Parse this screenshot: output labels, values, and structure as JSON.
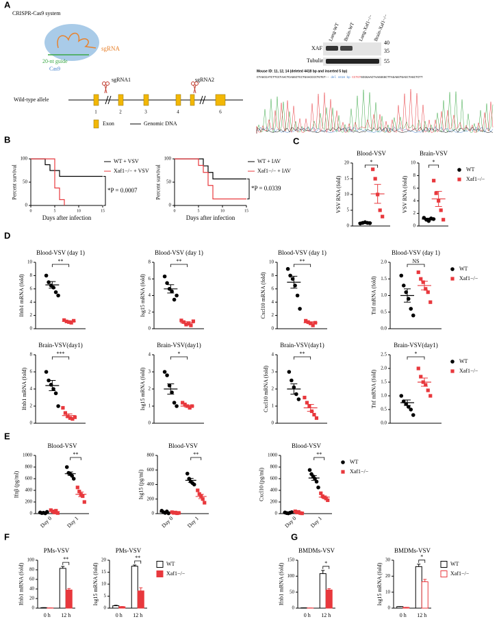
{
  "panel_labels": [
    "A",
    "B",
    "C",
    "D",
    "E",
    "F",
    "G"
  ],
  "diagram": {
    "title": "CRISPR-Cas9 system",
    "sgrna": "sgRNA",
    "guide": "20-nt guide",
    "cas9": "Cas9",
    "sgrna1": "sgRNA1",
    "sgrna2": "sgRNA2",
    "allele": "Wild-type allele",
    "exons": [
      "1",
      "2",
      "3",
      "4",
      "6"
    ],
    "legend_exon": "Exon",
    "legend_dna": "Genomic DNA"
  },
  "blot": {
    "lanes": [
      "Lung-WT",
      "Brain-WT",
      "Lung-Xaf1−/−",
      "Brain-Xaf1−/−"
    ],
    "rows": [
      "XAF1",
      "Tubulin"
    ],
    "markers": [
      "40",
      "35",
      "55"
    ]
  },
  "sequence": {
    "header": "Mouse ID: 11, 12, 14 (deleted 4418 bp and inserted 5 bp)",
    "left": "CTAGCCATCTTCCTAACTCAGGCTCCTGAACCCCTGTGT--",
    "deletion": "del 4418 bp",
    "insert": "CCTGT",
    "right": "GCGGAACTAAGGGGCTTAGAGGTGACCTAGCTCTT"
  },
  "chart_data": [
    {
      "type": "survival",
      "ylabel": "Percent survival",
      "xlabel": "Days after infection",
      "xlim": [
        0,
        15
      ],
      "xticks": [
        0,
        5,
        10,
        15
      ],
      "ylim": [
        0,
        100
      ],
      "yticks": [
        0,
        50,
        100
      ],
      "annotation": "*P = 0.0007",
      "legend": "upper right",
      "series": [
        {
          "name": "WT + VSV",
          "color": "#000000",
          "x": [
            0,
            3,
            4,
            6,
            15
          ],
          "values": [
            100,
            87.5,
            75,
            62.5,
            62.5
          ]
        },
        {
          "name": "Xaf1−/− + VSV",
          "color": "#e8383d",
          "x": [
            0,
            5,
            6,
            7
          ],
          "values": [
            100,
            37.5,
            12.5,
            0
          ]
        }
      ]
    },
    {
      "type": "survival",
      "ylabel": "Percent survival",
      "xlabel": "Days after infection",
      "xlim": [
        0,
        15
      ],
      "xticks": [
        0,
        5,
        10,
        15
      ],
      "ylim": [
        0,
        100
      ],
      "yticks": [
        0,
        50,
        100
      ],
      "annotation": "*P = 0.0339",
      "legend": "upper right",
      "series": [
        {
          "name": "WT + IAV",
          "color": "#000000",
          "x": [
            0,
            6,
            7,
            8,
            15
          ],
          "values": [
            100,
            85,
            71,
            57,
            57
          ]
        },
        {
          "name": "Xaf1−/− + IAV",
          "color": "#e8383d",
          "x": [
            0,
            5,
            6,
            7,
            8,
            15
          ],
          "values": [
            100,
            86,
            71,
            43,
            14,
            14
          ]
        }
      ]
    },
    {
      "type": "dot",
      "title": "Blood-VSV",
      "ylabel": "VSV RNA (fold)",
      "ylim": [
        0,
        20
      ],
      "yticks": [
        0,
        5,
        10,
        15,
        20
      ],
      "annotation": "*",
      "series": [
        {
          "color": "#000000",
          "marker": "circle",
          "values": [
            0.8,
            1,
            1.2,
            1,
            0.9
          ],
          "mean": 1,
          "error": 0.1
        },
        {
          "color": "#e8383d",
          "marker": "square",
          "values": [
            18,
            15,
            10,
            5,
            3
          ],
          "mean": 10.2,
          "error": 3
        }
      ]
    },
    {
      "type": "dot",
      "title": "Brain-VSV",
      "ylabel": "VSV RNA (fold)",
      "ylim": [
        0,
        10
      ],
      "yticks": [
        0,
        2,
        4,
        6,
        8,
        10
      ],
      "annotation": "*",
      "legend": "right",
      "series": [
        {
          "name": "WT",
          "color": "#000000",
          "marker": "circle",
          "values": [
            1.3,
            1,
            0.8,
            1.2,
            1.1
          ],
          "mean": 1.1,
          "error": 0.15
        },
        {
          "name": "Xaf1−/−",
          "color": "#e8383d",
          "marker": "square",
          "values": [
            7.2,
            5.2,
            4,
            2.5,
            1
          ],
          "mean": 4.3,
          "error": 1.2
        }
      ]
    },
    {
      "type": "dot",
      "title": "Blood-VSV (day 1)",
      "ylabel": "Ifnb1 mRNA (fold)",
      "ylim": [
        0,
        10
      ],
      "yticks": [
        0,
        2,
        4,
        6,
        8,
        10
      ],
      "annotation": "**",
      "series": [
        {
          "color": "#000000",
          "marker": "circle",
          "values": [
            8,
            7,
            6.5,
            6.2,
            5.5,
            5
          ],
          "mean": 6.6,
          "error": 0.5
        },
        {
          "color": "#e8383d",
          "marker": "square",
          "values": [
            1.3,
            1.1,
            1,
            0.9,
            1.2
          ],
          "mean": 1.1,
          "error": 0.1
        }
      ]
    },
    {
      "type": "dot",
      "title": "Blood-VSV (day 1)",
      "ylabel": "Isg15 mRNA (fold)",
      "ylim": [
        0,
        8
      ],
      "yticks": [
        0,
        2,
        4,
        6,
        8
      ],
      "annotation": "**",
      "series": [
        {
          "color": "#000000",
          "marker": "circle",
          "values": [
            6.3,
            5.5,
            4.8,
            4.5,
            3.5,
            4
          ],
          "mean": 4.8,
          "error": 0.5
        },
        {
          "color": "#e8383d",
          "marker": "square",
          "values": [
            1,
            0.8,
            0.5,
            0.6,
            0.4,
            0.9
          ],
          "mean": 0.7,
          "error": 0.15
        }
      ]
    },
    {
      "type": "dot",
      "title": "Blood-VSV (day 1)",
      "ylabel": "Cxcl10 mRNA (fold)",
      "ylim": [
        0,
        10
      ],
      "yticks": [
        0,
        2,
        4,
        6,
        8,
        10
      ],
      "annotation": "**",
      "series": [
        {
          "color": "#000000",
          "marker": "circle",
          "values": [
            9,
            8,
            7.5,
            6.5,
            5,
            3
          ],
          "mean": 7,
          "error": 0.9
        },
        {
          "color": "#e8383d",
          "marker": "square",
          "values": [
            1.2,
            1,
            0.8,
            0.5,
            0.9
          ],
          "mean": 0.9,
          "error": 0.15
        }
      ]
    },
    {
      "type": "dot",
      "title": "Blood-VSV (day 1)",
      "ylabel": "Tnf mRNA (fold)",
      "ylim": [
        0,
        2
      ],
      "yticks": [
        {
          "value": 0,
          "label": "0.0"
        },
        0.5,
        {
          "value": 1,
          "label": "1.0"
        },
        1.5,
        {
          "value": 2,
          "label": "2.0"
        }
      ],
      "annotation": "NS",
      "legend": "right",
      "series": [
        {
          "name": "WT",
          "color": "#000000",
          "marker": "circle",
          "values": [
            1.6,
            1.3,
            1.1,
            0.9,
            0.6,
            0.4
          ],
          "mean": 1,
          "error": 0.2
        },
        {
          "name": "Xaf1−/−",
          "color": "#e8383d",
          "marker": "square",
          "values": [
            1.7,
            1.5,
            1.4,
            1.2,
            1.1,
            0.8
          ],
          "mean": 1.3,
          "error": 0.13
        }
      ]
    },
    {
      "type": "dot",
      "title": "Brain-VSV(day1)",
      "ylabel": "Ifnb1 mRNA (fold)",
      "ylim": [
        0,
        8
      ],
      "yticks": [
        0,
        2,
        4,
        6,
        8
      ],
      "annotation": "***",
      "series": [
        {
          "color": "#000000",
          "marker": "circle",
          "values": [
            6,
            5,
            4.5,
            4,
            3.5,
            2
          ],
          "mean": 4.4,
          "error": 0.6
        },
        {
          "color": "#e8383d",
          "marker": "square",
          "values": [
            1.8,
            1.2,
            0.8,
            0.6,
            0.5,
            0.7
          ],
          "mean": 0.9,
          "error": 0.2
        }
      ]
    },
    {
      "type": "dot",
      "title": "Brain-VSV(day1)",
      "ylabel": "Isg15 mRNA (fold)",
      "ylim": [
        0,
        4
      ],
      "yticks": [
        0,
        1,
        2,
        3,
        4
      ],
      "annotation": "*",
      "series": [
        {
          "color": "#000000",
          "marker": "circle",
          "values": [
            3,
            2.8,
            2.2,
            1.8,
            1.2,
            1
          ],
          "mean": 2,
          "error": 0.3
        },
        {
          "color": "#e8383d",
          "marker": "square",
          "values": [
            1.2,
            1.1,
            1,
            0.9,
            1
          ],
          "mean": 1,
          "error": 0.05
        }
      ]
    },
    {
      "type": "dot",
      "title": "Brain-VSV(day1)",
      "ylabel": "Cxcl10 mRNA (fold)",
      "ylim": [
        0,
        4
      ],
      "yticks": [
        0,
        1,
        2,
        3,
        4
      ],
      "annotation": "**",
      "series": [
        {
          "color": "#000000",
          "marker": "circle",
          "values": [
            3,
            2.5,
            2.1,
            1.7,
            1.4
          ],
          "mean": 2,
          "error": 0.3
        },
        {
          "color": "#e8383d",
          "marker": "square",
          "values": [
            1.5,
            1.2,
            1,
            0.7,
            0.5,
            0.3
          ],
          "mean": 0.9,
          "error": 0.2
        }
      ]
    },
    {
      "type": "dot",
      "title": "Brain-VSV(day1)",
      "ylabel": "Tnf mRNA (fold)",
      "ylim": [
        0,
        2.5
      ],
      "yticks": [
        {
          "value": 0,
          "label": "0.0"
        },
        0.5,
        {
          "value": 1,
          "label": "1.0"
        },
        1.5,
        {
          "value": 2,
          "label": "2.0"
        },
        2.5
      ],
      "annotation": "*",
      "legend": "right",
      "series": [
        {
          "name": "WT",
          "color": "#000000",
          "marker": "circle",
          "values": [
            1,
            0.8,
            0.7,
            0.6,
            0.5,
            0.3
          ],
          "mean": 0.75,
          "error": 0.1
        },
        {
          "name": "Xaf1−/−",
          "color": "#e8383d",
          "marker": "square",
          "values": [
            2,
            1.7,
            1.5,
            1.4,
            1.2,
            1
          ],
          "mean": 1.5,
          "error": 0.15
        }
      ]
    },
    {
      "type": "grouped_dot",
      "title": "Blood-VSV",
      "ylabel": "Ifnβ (pg/ml)",
      "categories": [
        "Day 0",
        "Day 1"
      ],
      "ylim": [
        0,
        1000
      ],
      "yticks": [
        0,
        200,
        400,
        600,
        800,
        1000
      ],
      "annotation": "**",
      "series": [
        {
          "color": "#000000",
          "marker": "circle",
          "values": [
            [
              20,
              10,
              15,
              5,
              30
            ],
            [
              800,
              700,
              680,
              650,
              600
            ]
          ],
          "mean": [
            16,
            686
          ],
          "error": [
            5,
            30
          ]
        },
        {
          "color": "#e8383d",
          "marker": "square",
          "values": [
            [
              60,
              40,
              20,
              50,
              10
            ],
            [
              450,
              380,
              330,
              300,
              200
            ]
          ],
          "mean": [
            36,
            332
          ],
          "error": [
            9,
            40
          ]
        }
      ]
    },
    {
      "type": "grouped_dot",
      "title": "Blood-VSV",
      "ylabel": "Isg15 (pg/ml)",
      "categories": [
        "Day 0",
        "Day 1"
      ],
      "ylim": [
        0,
        800
      ],
      "yticks": [
        0,
        200,
        400,
        600,
        800
      ],
      "annotation": "**",
      "series": [
        {
          "color": "#000000",
          "marker": "circle",
          "values": [
            [
              40,
              20,
              10,
              30,
              5
            ],
            [
              550,
              480,
              440,
              420,
              400
            ]
          ],
          "mean": [
            21,
            458
          ],
          "error": [
            6,
            27
          ]
        },
        {
          "color": "#e8383d",
          "marker": "square",
          "values": [
            [
              20,
              10,
              15,
              5,
              10
            ],
            [
              320,
              270,
              240,
              200,
              150
            ]
          ],
          "mean": [
            12,
            236
          ],
          "error": [
            3,
            30
          ]
        }
      ]
    },
    {
      "type": "grouped_dot",
      "title": "Blood-VSV",
      "ylabel": "Cxcl10 (pg/ml)",
      "categories": [
        "Day 0",
        "Day 1"
      ],
      "ylim": [
        0,
        1000
      ],
      "yticks": [
        0,
        200,
        400,
        600,
        800,
        1000
      ],
      "annotation": "**",
      "legend": "right",
      "series": [
        {
          "name": "WT",
          "color": "#000000",
          "marker": "circle",
          "values": [
            [
              20,
              10,
              5,
              15,
              25
            ],
            [
              750,
              680,
              640,
              600,
              550,
              450
            ]
          ],
          "mean": [
            15,
            612
          ],
          "error": [
            4,
            40
          ]
        },
        {
          "name": "Xaf1−/−",
          "color": "#e8383d",
          "marker": "square",
          "values": [
            [
              40,
              20,
              30,
              10,
              5
            ],
            [
              350,
              300,
              280,
              260,
              230
            ]
          ],
          "mean": [
            21,
            284
          ],
          "error": [
            6,
            20
          ]
        }
      ]
    },
    {
      "type": "bar",
      "title": "PMs-VSV",
      "ylabel": "Ifnb1 mRNA (fold)",
      "categories": [
        "0 h",
        "12 h"
      ],
      "ylim": [
        0,
        100
      ],
      "yticks": [
        0,
        20,
        40,
        60,
        80,
        100
      ],
      "annotation": "**",
      "series": [
        {
          "color": "#000000",
          "fill": "#ffffff",
          "values": [
            1,
            83
          ],
          "errors": [
            0,
            4
          ]
        },
        {
          "color": "#e8383d",
          "fill": "#e8383d",
          "values": [
            0.5,
            38
          ],
          "errors": [
            0,
            3
          ]
        }
      ]
    },
    {
      "type": "bar",
      "title": "PMs-VSV",
      "ylabel": "Isg15 mRNA (fold)",
      "categories": [
        "0 h",
        "12 h"
      ],
      "ylim": [
        0,
        20
      ],
      "yticks": [
        0,
        5,
        10,
        15,
        20
      ],
      "annotation": "**",
      "legend": "right",
      "series": [
        {
          "name": "WT",
          "color": "#000000",
          "fill": "#ffffff",
          "values": [
            1,
            17.5
          ],
          "errors": [
            0.2,
            0.5
          ]
        },
        {
          "name": "Xaf1−/−",
          "color": "#e8383d",
          "fill": "#e8383d",
          "values": [
            0.6,
            7.2
          ],
          "errors": [
            0.1,
            1.3
          ]
        }
      ]
    },
    {
      "type": "bar",
      "title": "BMDMs-VSV",
      "ylabel": "Ifnb1 mRNA (fold)",
      "categories": [
        "0 h",
        "12 h"
      ],
      "ylim": [
        0,
        150
      ],
      "yticks": [
        0,
        50,
        100,
        150
      ],
      "annotation": "*",
      "series": [
        {
          "color": "#000000",
          "fill": "#ffffff",
          "values": [
            1,
            108
          ],
          "errors": [
            0,
            10
          ]
        },
        {
          "color": "#e8383d",
          "fill": "#e8383d",
          "values": [
            0.5,
            57
          ],
          "errors": [
            0,
            4
          ]
        }
      ]
    },
    {
      "type": "bar",
      "title": "BMDMs-VSV",
      "ylabel": "Isg15 mRNA (fold)",
      "categories": [
        "0 h",
        "12 h"
      ],
      "ylim": [
        0,
        30
      ],
      "yticks": [
        0,
        10,
        20,
        30
      ],
      "annotation": "*",
      "legend": "right",
      "series": [
        {
          "name": "WT",
          "color": "#000000",
          "fill": "#ffffff",
          "values": [
            1,
            26
          ],
          "errors": [
            0,
            1.5
          ]
        },
        {
          "name": "Xaf1−/−",
          "color": "#e8383d",
          "fill": "#ffffff",
          "values": [
            0.5,
            16.5
          ],
          "errors": [
            0,
            1.5
          ]
        }
      ]
    }
  ]
}
